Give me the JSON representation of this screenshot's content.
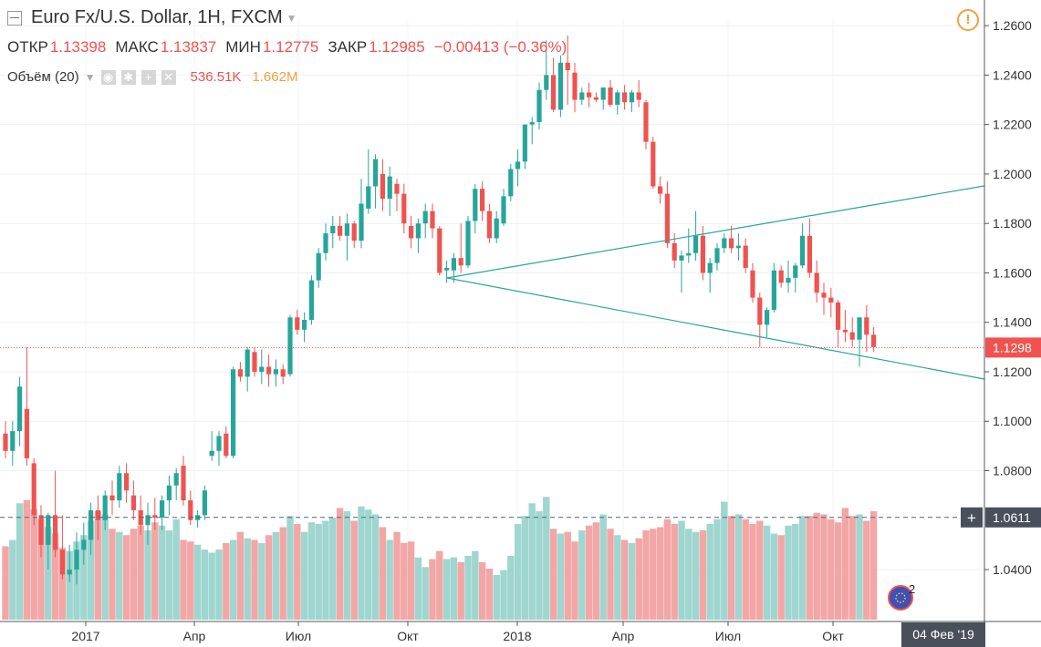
{
  "header": {
    "symbol_title": "Euro Fx/U.S. Dollar, 1H, FXCM",
    "ohlc": [
      {
        "key": "ОТКР",
        "value": "1.13398"
      },
      {
        "key": "МАКС",
        "value": "1.13837"
      },
      {
        "key": "МИН",
        "value": "1.12775"
      },
      {
        "key": "ЗАКР",
        "value": "1.12985"
      }
    ],
    "change": "−0.00413 (−0.36%)"
  },
  "volume_indicator": {
    "label": "Объём (20)",
    "value": "536.51K",
    "ma_value": "1.662M"
  },
  "crosshair_date": "04 Фев '19",
  "chart_data": {
    "type": "candlestick",
    "title": "Euro Fx/U.S. Dollar, 1H, FXCM",
    "y_ticks": [
      1.26,
      1.24,
      1.22,
      1.2,
      1.18,
      1.16,
      1.14,
      1.12,
      1.1,
      1.08,
      1.04
    ],
    "x_ticks": [
      "2017",
      "Апр",
      "Июл",
      "Окт",
      "2018",
      "Апр",
      "Июл",
      "Окт"
    ],
    "ylim": [
      1.019,
      1.263
    ],
    "last_price": 1.1298,
    "last_price_label": "1.1298",
    "crosshair_price": 1.0611,
    "crosshair_price_label": "1.0611",
    "annotations": {
      "badge_count": "2"
    },
    "candles": [
      {
        "o": 1.095,
        "h": 1.1,
        "l": 1.085,
        "c": 1.088
      },
      {
        "o": 1.088,
        "h": 1.1,
        "l": 1.082,
        "c": 1.096
      },
      {
        "o": 1.096,
        "h": 1.118,
        "l": 1.09,
        "c": 1.114
      },
      {
        "o": 1.105,
        "h": 1.13,
        "l": 1.082,
        "c": 1.085
      },
      {
        "o": 1.083,
        "h": 1.085,
        "l": 1.058,
        "c": 1.062
      },
      {
        "o": 1.062,
        "h": 1.066,
        "l": 1.045,
        "c": 1.05
      },
      {
        "o": 1.05,
        "h": 1.063,
        "l": 1.04,
        "c": 1.062
      },
      {
        "o": 1.062,
        "h": 1.08,
        "l": 1.045,
        "c": 1.048
      },
      {
        "o": 1.048,
        "h": 1.062,
        "l": 1.036,
        "c": 1.038
      },
      {
        "o": 1.038,
        "h": 1.05,
        "l": 1.035,
        "c": 1.04
      },
      {
        "o": 1.04,
        "h": 1.055,
        "l": 1.034,
        "c": 1.048
      },
      {
        "o": 1.048,
        "h": 1.059,
        "l": 1.042,
        "c": 1.052
      },
      {
        "o": 1.052,
        "h": 1.067,
        "l": 1.046,
        "c": 1.064
      },
      {
        "o": 1.064,
        "h": 1.07,
        "l": 1.052,
        "c": 1.06
      },
      {
        "o": 1.06,
        "h": 1.072,
        "l": 1.056,
        "c": 1.07
      },
      {
        "o": 1.07,
        "h": 1.076,
        "l": 1.062,
        "c": 1.068
      },
      {
        "o": 1.068,
        "h": 1.082,
        "l": 1.065,
        "c": 1.079
      },
      {
        "o": 1.079,
        "h": 1.083,
        "l": 1.067,
        "c": 1.072
      },
      {
        "o": 1.07,
        "h": 1.076,
        "l": 1.06,
        "c": 1.064
      },
      {
        "o": 1.064,
        "h": 1.07,
        "l": 1.054,
        "c": 1.058
      },
      {
        "o": 1.058,
        "h": 1.067,
        "l": 1.05,
        "c": 1.062
      },
      {
        "o": 1.062,
        "h": 1.069,
        "l": 1.056,
        "c": 1.061
      },
      {
        "o": 1.061,
        "h": 1.07,
        "l": 1.056,
        "c": 1.068
      },
      {
        "o": 1.068,
        "h": 1.078,
        "l": 1.062,
        "c": 1.074
      },
      {
        "o": 1.074,
        "h": 1.081,
        "l": 1.068,
        "c": 1.079
      },
      {
        "o": 1.082,
        "h": 1.086,
        "l": 1.066,
        "c": 1.068
      },
      {
        "o": 1.068,
        "h": 1.072,
        "l": 1.058,
        "c": 1.06
      },
      {
        "o": 1.06,
        "h": 1.064,
        "l": 1.057,
        "c": 1.062
      },
      {
        "o": 1.062,
        "h": 1.074,
        "l": 1.06,
        "c": 1.072
      },
      {
        "o": 1.086,
        "h": 1.096,
        "l": 1.084,
        "c": 1.088
      },
      {
        "o": 1.088,
        "h": 1.096,
        "l": 1.082,
        "c": 1.094
      },
      {
        "o": 1.095,
        "h": 1.098,
        "l": 1.085,
        "c": 1.086
      },
      {
        "o": 1.086,
        "h": 1.122,
        "l": 1.085,
        "c": 1.121
      },
      {
        "o": 1.121,
        "h": 1.124,
        "l": 1.116,
        "c": 1.118
      },
      {
        "o": 1.118,
        "h": 1.13,
        "l": 1.112,
        "c": 1.129
      },
      {
        "o": 1.128,
        "h": 1.13,
        "l": 1.118,
        "c": 1.12
      },
      {
        "o": 1.12,
        "h": 1.129,
        "l": 1.115,
        "c": 1.122
      },
      {
        "o": 1.122,
        "h": 1.127,
        "l": 1.114,
        "c": 1.119
      },
      {
        "o": 1.119,
        "h": 1.125,
        "l": 1.114,
        "c": 1.121
      },
      {
        "o": 1.121,
        "h": 1.123,
        "l": 1.115,
        "c": 1.118
      },
      {
        "o": 1.119,
        "h": 1.143,
        "l": 1.118,
        "c": 1.142
      },
      {
        "o": 1.142,
        "h": 1.145,
        "l": 1.135,
        "c": 1.137
      },
      {
        "o": 1.137,
        "h": 1.144,
        "l": 1.132,
        "c": 1.141
      },
      {
        "o": 1.141,
        "h": 1.159,
        "l": 1.139,
        "c": 1.157
      },
      {
        "o": 1.157,
        "h": 1.17,
        "l": 1.154,
        "c": 1.168
      },
      {
        "o": 1.168,
        "h": 1.18,
        "l": 1.165,
        "c": 1.176
      },
      {
        "o": 1.176,
        "h": 1.183,
        "l": 1.17,
        "c": 1.179
      },
      {
        "o": 1.179,
        "h": 1.183,
        "l": 1.173,
        "c": 1.175
      },
      {
        "o": 1.175,
        "h": 1.184,
        "l": 1.165,
        "c": 1.18
      },
      {
        "o": 1.18,
        "h": 1.181,
        "l": 1.17,
        "c": 1.173
      },
      {
        "o": 1.173,
        "h": 1.198,
        "l": 1.17,
        "c": 1.188
      },
      {
        "o": 1.186,
        "h": 1.21,
        "l": 1.184,
        "c": 1.195
      },
      {
        "o": 1.195,
        "h": 1.208,
        "l": 1.186,
        "c": 1.206
      },
      {
        "o": 1.2,
        "h": 1.206,
        "l": 1.185,
        "c": 1.19
      },
      {
        "o": 1.19,
        "h": 1.203,
        "l": 1.183,
        "c": 1.199
      },
      {
        "o": 1.196,
        "h": 1.198,
        "l": 1.185,
        "c": 1.192
      },
      {
        "o": 1.192,
        "h": 1.196,
        "l": 1.176,
        "c": 1.18
      },
      {
        "o": 1.179,
        "h": 1.183,
        "l": 1.17,
        "c": 1.174
      },
      {
        "o": 1.174,
        "h": 1.182,
        "l": 1.168,
        "c": 1.18
      },
      {
        "o": 1.18,
        "h": 1.188,
        "l": 1.174,
        "c": 1.185
      },
      {
        "o": 1.185,
        "h": 1.188,
        "l": 1.174,
        "c": 1.178
      },
      {
        "o": 1.178,
        "h": 1.179,
        "l": 1.159,
        "c": 1.16
      },
      {
        "o": 1.161,
        "h": 1.165,
        "l": 1.156,
        "c": 1.162
      },
      {
        "o": 1.161,
        "h": 1.168,
        "l": 1.156,
        "c": 1.166
      },
      {
        "o": 1.166,
        "h": 1.18,
        "l": 1.16,
        "c": 1.163
      },
      {
        "o": 1.163,
        "h": 1.183,
        "l": 1.162,
        "c": 1.181
      },
      {
        "o": 1.181,
        "h": 1.196,
        "l": 1.176,
        "c": 1.194
      },
      {
        "o": 1.194,
        "h": 1.197,
        "l": 1.181,
        "c": 1.185
      },
      {
        "o": 1.185,
        "h": 1.188,
        "l": 1.172,
        "c": 1.174
      },
      {
        "o": 1.174,
        "h": 1.185,
        "l": 1.172,
        "c": 1.182
      },
      {
        "o": 1.18,
        "h": 1.194,
        "l": 1.179,
        "c": 1.191
      },
      {
        "o": 1.191,
        "h": 1.204,
        "l": 1.189,
        "c": 1.202
      },
      {
        "o": 1.202,
        "h": 1.21,
        "l": 1.195,
        "c": 1.205
      },
      {
        "o": 1.205,
        "h": 1.22,
        "l": 1.202,
        "c": 1.22
      },
      {
        "o": 1.22,
        "h": 1.223,
        "l": 1.212,
        "c": 1.221
      },
      {
        "o": 1.221,
        "h": 1.237,
        "l": 1.218,
        "c": 1.234
      },
      {
        "o": 1.234,
        "h": 1.254,
        "l": 1.23,
        "c": 1.24
      },
      {
        "o": 1.24,
        "h": 1.247,
        "l": 1.225,
        "c": 1.226
      },
      {
        "o": 1.226,
        "h": 1.248,
        "l": 1.223,
        "c": 1.245
      },
      {
        "o": 1.245,
        "h": 1.256,
        "l": 1.228,
        "c": 1.242
      },
      {
        "o": 1.241,
        "h": 1.245,
        "l": 1.225,
        "c": 1.23
      },
      {
        "o": 1.23,
        "h": 1.235,
        "l": 1.228,
        "c": 1.233
      },
      {
        "o": 1.233,
        "h": 1.237,
        "l": 1.227,
        "c": 1.231
      },
      {
        "o": 1.231,
        "h": 1.233,
        "l": 1.229,
        "c": 1.23
      },
      {
        "o": 1.23,
        "h": 1.235,
        "l": 1.226,
        "c": 1.235
      },
      {
        "o": 1.235,
        "h": 1.238,
        "l": 1.227,
        "c": 1.228
      },
      {
        "o": 1.228,
        "h": 1.234,
        "l": 1.224,
        "c": 1.233
      },
      {
        "o": 1.233,
        "h": 1.236,
        "l": 1.226,
        "c": 1.229
      },
      {
        "o": 1.229,
        "h": 1.234,
        "l": 1.225,
        "c": 1.233
      },
      {
        "o": 1.233,
        "h": 1.238,
        "l": 1.227,
        "c": 1.23
      },
      {
        "o": 1.229,
        "h": 1.23,
        "l": 1.21,
        "c": 1.213
      },
      {
        "o": 1.213,
        "h": 1.215,
        "l": 1.194,
        "c": 1.195
      },
      {
        "o": 1.195,
        "h": 1.199,
        "l": 1.188,
        "c": 1.192
      },
      {
        "o": 1.192,
        "h": 1.197,
        "l": 1.17,
        "c": 1.172
      },
      {
        "o": 1.172,
        "h": 1.176,
        "l": 1.162,
        "c": 1.165
      },
      {
        "o": 1.165,
        "h": 1.169,
        "l": 1.152,
        "c": 1.167
      },
      {
        "o": 1.167,
        "h": 1.178,
        "l": 1.164,
        "c": 1.168
      },
      {
        "o": 1.168,
        "h": 1.185,
        "l": 1.165,
        "c": 1.175
      },
      {
        "o": 1.175,
        "h": 1.179,
        "l": 1.157,
        "c": 1.16
      },
      {
        "o": 1.16,
        "h": 1.166,
        "l": 1.152,
        "c": 1.164
      },
      {
        "o": 1.164,
        "h": 1.172,
        "l": 1.161,
        "c": 1.17
      },
      {
        "o": 1.17,
        "h": 1.176,
        "l": 1.168,
        "c": 1.174
      },
      {
        "o": 1.174,
        "h": 1.179,
        "l": 1.168,
        "c": 1.17
      },
      {
        "o": 1.17,
        "h": 1.176,
        "l": 1.165,
        "c": 1.171
      },
      {
        "o": 1.171,
        "h": 1.174,
        "l": 1.16,
        "c": 1.162
      },
      {
        "o": 1.161,
        "h": 1.164,
        "l": 1.148,
        "c": 1.15
      },
      {
        "o": 1.15,
        "h": 1.152,
        "l": 1.13,
        "c": 1.139
      },
      {
        "o": 1.139,
        "h": 1.146,
        "l": 1.134,
        "c": 1.145
      },
      {
        "o": 1.145,
        "h": 1.164,
        "l": 1.144,
        "c": 1.161
      },
      {
        "o": 1.161,
        "h": 1.163,
        "l": 1.154,
        "c": 1.156
      },
      {
        "o": 1.156,
        "h": 1.165,
        "l": 1.152,
        "c": 1.158
      },
      {
        "o": 1.158,
        "h": 1.164,
        "l": 1.152,
        "c": 1.163
      },
      {
        "o": 1.163,
        "h": 1.18,
        "l": 1.162,
        "c": 1.175
      },
      {
        "o": 1.175,
        "h": 1.182,
        "l": 1.158,
        "c": 1.16
      },
      {
        "o": 1.16,
        "h": 1.165,
        "l": 1.148,
        "c": 1.152
      },
      {
        "o": 1.152,
        "h": 1.156,
        "l": 1.143,
        "c": 1.15
      },
      {
        "o": 1.15,
        "h": 1.154,
        "l": 1.142,
        "c": 1.148
      },
      {
        "o": 1.148,
        "h": 1.149,
        "l": 1.13,
        "c": 1.137
      },
      {
        "o": 1.137,
        "h": 1.145,
        "l": 1.132,
        "c": 1.136
      },
      {
        "o": 1.136,
        "h": 1.142,
        "l": 1.13,
        "c": 1.133
      },
      {
        "o": 1.133,
        "h": 1.142,
        "l": 1.122,
        "c": 1.142
      },
      {
        "o": 1.142,
        "h": 1.147,
        "l": 1.128,
        "c": 1.135
      },
      {
        "o": 1.135,
        "h": 1.138,
        "l": 1.128,
        "c": 1.13
      }
    ],
    "volume_values": [
      0.46,
      0.5,
      0.73,
      0.75,
      0.69,
      0.63,
      0.58,
      0.54,
      0.45,
      0.43,
      0.49,
      0.53,
      0.62,
      0.68,
      0.66,
      0.57,
      0.55,
      0.53,
      0.57,
      0.59,
      0.56,
      0.61,
      0.59,
      0.56,
      0.63,
      0.5,
      0.49,
      0.47,
      0.44,
      0.42,
      0.44,
      0.48,
      0.5,
      0.55,
      0.51,
      0.5,
      0.48,
      0.53,
      0.55,
      0.58,
      0.65,
      0.6,
      0.55,
      0.61,
      0.6,
      0.62,
      0.64,
      0.7,
      0.68,
      0.62,
      0.71,
      0.69,
      0.66,
      0.58,
      0.5,
      0.55,
      0.48,
      0.49,
      0.39,
      0.33,
      0.38,
      0.43,
      0.38,
      0.39,
      0.36,
      0.4,
      0.43,
      0.36,
      0.32,
      0.28,
      0.31,
      0.4,
      0.6,
      0.65,
      0.73,
      0.68,
      0.77,
      0.57,
      0.54,
      0.55,
      0.49,
      0.56,
      0.59,
      0.61,
      0.66,
      0.57,
      0.53,
      0.5,
      0.48,
      0.51,
      0.56,
      0.57,
      0.58,
      0.63,
      0.6,
      0.62,
      0.57,
      0.55,
      0.56,
      0.6,
      0.63,
      0.74,
      0.65,
      0.66,
      0.63,
      0.6,
      0.62,
      0.59,
      0.54,
      0.53,
      0.59,
      0.6,
      0.65,
      0.65,
      0.67,
      0.66,
      0.63,
      0.61,
      0.7,
      0.65,
      0.66,
      0.62,
      0.68,
      0.62,
      0.67,
      0.83,
      0.54
    ]
  }
}
